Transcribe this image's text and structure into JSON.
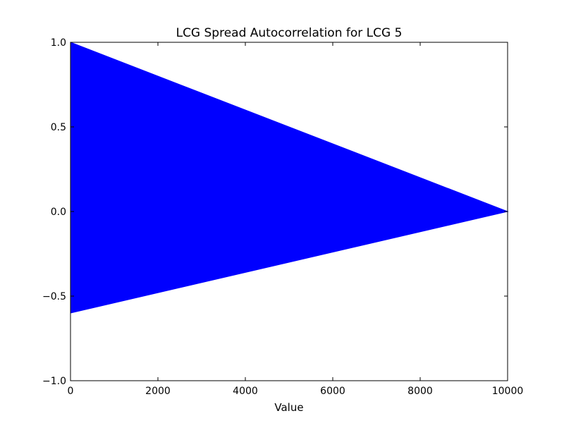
{
  "chart_data": {
    "type": "area",
    "title": "LCG Spread Autocorrelation for LCG 5",
    "xlabel": "Value",
    "ylabel": "",
    "xlim": [
      0,
      10000
    ],
    "ylim": [
      -1.0,
      1.0
    ],
    "x_ticks": [
      0,
      2000,
      4000,
      6000,
      8000,
      10000
    ],
    "x_tick_labels": [
      "0",
      "2000",
      "4000",
      "6000",
      "8000",
      "10000"
    ],
    "y_ticks": [
      1.0,
      0.5,
      0.0,
      -0.5,
      -1.0
    ],
    "y_tick_labels": [
      "1.0",
      "0.5",
      "0.0",
      "−0.5",
      "−1.0"
    ],
    "grid": false,
    "series": [
      {
        "color": "#0000ff",
        "upper_envelope": [
          {
            "x": 0,
            "y": 1.0
          },
          {
            "x": 10000,
            "y": 0.0
          }
        ],
        "lower_envelope": [
          {
            "x": 0,
            "y": -0.6
          },
          {
            "x": 10000,
            "y": 0.0
          }
        ]
      }
    ]
  }
}
